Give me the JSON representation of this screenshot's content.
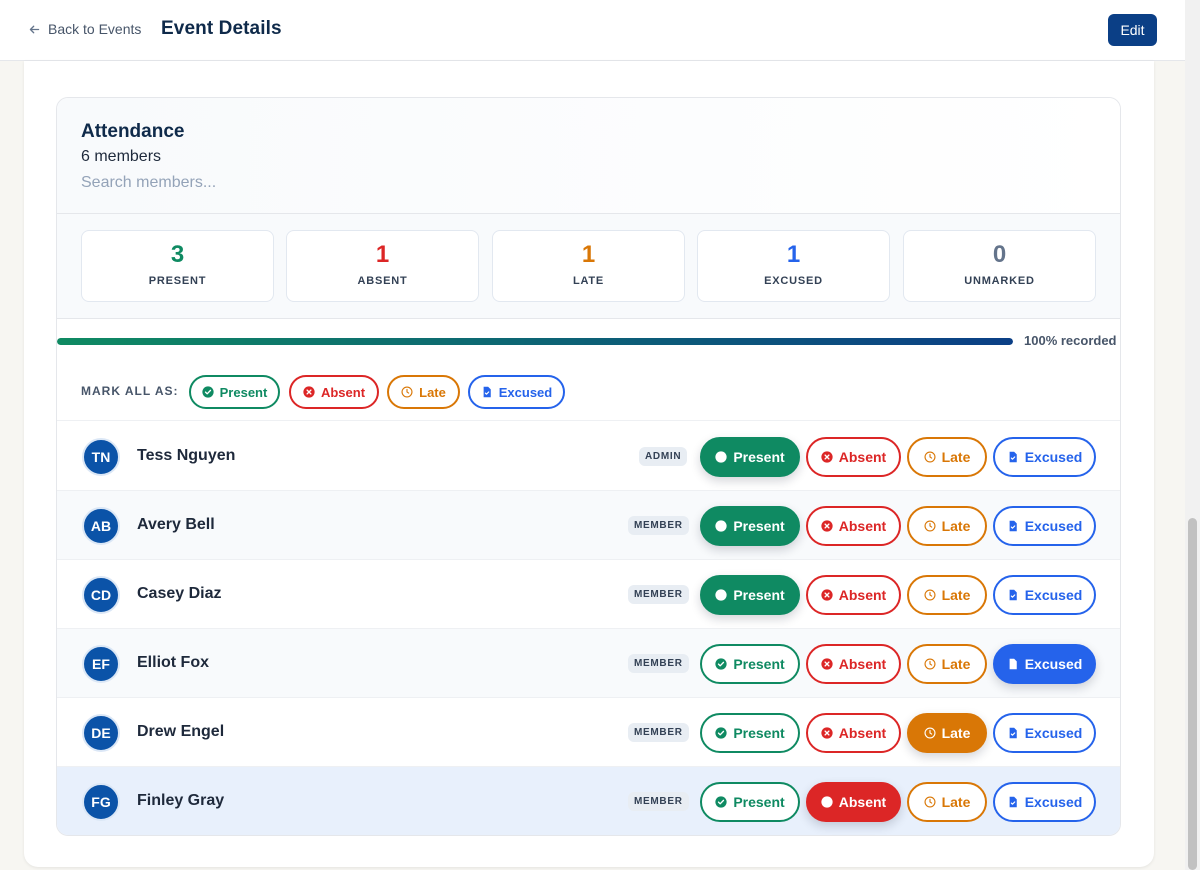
{
  "header": {
    "back_label": "Back to Events",
    "title": "Event Details",
    "edit_label": "Edit"
  },
  "attendance": {
    "title": "Attendance",
    "member_count": "6 members",
    "search_placeholder": "Search members...",
    "stats": [
      {
        "value": "3",
        "label": "PRESENT",
        "color": "#0f8a62"
      },
      {
        "value": "1",
        "label": "ABSENT",
        "color": "#dc2626"
      },
      {
        "value": "1",
        "label": "LATE",
        "color": "#d97706"
      },
      {
        "value": "1",
        "label": "EXCUSED",
        "color": "#2563eb"
      },
      {
        "value": "0",
        "label": "UNMARKED",
        "color": "#64748b"
      }
    ],
    "progress": {
      "fraction": 1.0,
      "label": "100% recorded"
    },
    "mark_all": {
      "label": "MARK ALL AS:",
      "options": [
        "Present",
        "Absent",
        "Late",
        "Excused"
      ]
    },
    "status_labels": {
      "present": "Present",
      "absent": "Absent",
      "late": "Late",
      "excused": "Excused"
    },
    "status_colors": {
      "present": "#0f8a62",
      "absent": "#dc2626",
      "late": "#d97706",
      "excused": "#2563eb"
    },
    "members": [
      {
        "initials": "TN",
        "name": "Tess Nguyen",
        "role": "ADMIN",
        "status": "present"
      },
      {
        "initials": "AB",
        "name": "Avery Bell",
        "role": "MEMBER",
        "status": "present"
      },
      {
        "initials": "CD",
        "name": "Casey Diaz",
        "role": "MEMBER",
        "status": "present"
      },
      {
        "initials": "EF",
        "name": "Elliot Fox",
        "role": "MEMBER",
        "status": "excused"
      },
      {
        "initials": "DE",
        "name": "Drew Engel",
        "role": "MEMBER",
        "status": "late"
      },
      {
        "initials": "FG",
        "name": "Finley Gray",
        "role": "MEMBER",
        "status": "absent"
      }
    ]
  }
}
